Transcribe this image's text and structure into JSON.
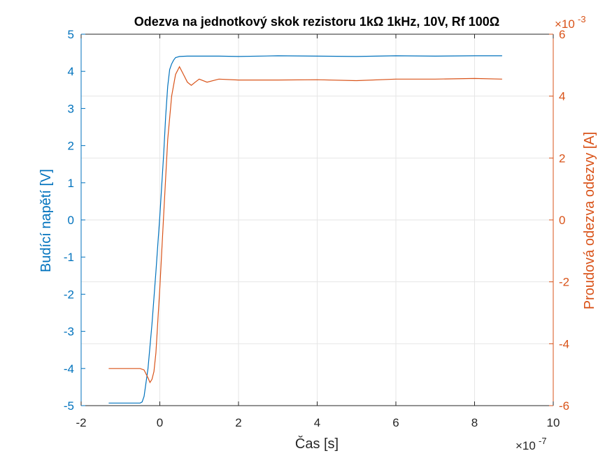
{
  "chart_data": {
    "type": "line",
    "title": "Odezva na jednotkový skok rezistoru 1kΩ 1kHz, 10V, Rf 100Ω",
    "xlabel": "Čas [s]",
    "ylabel_left": "Budící napětí [V]",
    "ylabel_right": "Proudová odezva odezvy [A]",
    "x_exponent_label": "×10",
    "x_exponent_power": "-7",
    "y_right_exponent_label": "×10",
    "y_right_exponent_power": "-3",
    "xlim": [
      -2,
      10
    ],
    "ylim_left": [
      -5,
      5
    ],
    "ylim_right": [
      -6,
      6
    ],
    "x_ticks": [
      -2,
      0,
      2,
      4,
      6,
      8,
      10
    ],
    "x_tick_labels": [
      "-2",
      "0",
      "2",
      "4",
      "6",
      "8",
      "10"
    ],
    "y_left_ticks": [
      -5,
      -4,
      -3,
      -2,
      -1,
      0,
      1,
      2,
      3,
      4,
      5
    ],
    "y_left_tick_labels": [
      "-5",
      "-4",
      "-3",
      "-2",
      "-1",
      "0",
      "1",
      "2",
      "3",
      "4",
      "5"
    ],
    "y_right_ticks": [
      -6,
      -4,
      -2,
      0,
      2,
      4,
      6
    ],
    "y_right_tick_labels": [
      "-6",
      "-4",
      "-2",
      "0",
      "2",
      "4",
      "6"
    ],
    "grid": true,
    "colors": {
      "left": "#0072BD",
      "right": "#D95319",
      "grid": "#e6e6e6",
      "axis": "#262626"
    },
    "series": [
      {
        "axis": "left",
        "x": [
          -1.3,
          -1.0,
          -0.7,
          -0.5,
          -0.45,
          -0.4,
          -0.3,
          -0.2,
          -0.1,
          0.0,
          0.1,
          0.15,
          0.2,
          0.25,
          0.3,
          0.35,
          0.4,
          0.5,
          0.7,
          1.0,
          1.5,
          2.0,
          3.0,
          4.0,
          5.0,
          6.0,
          7.0,
          8.0,
          8.7
        ],
        "values": [
          -4.93,
          -4.93,
          -4.93,
          -4.93,
          -4.9,
          -4.75,
          -4.0,
          -2.8,
          -1.4,
          0.1,
          1.8,
          2.8,
          3.6,
          4.05,
          4.2,
          4.3,
          4.37,
          4.4,
          4.41,
          4.41,
          4.41,
          4.4,
          4.42,
          4.41,
          4.4,
          4.42,
          4.41,
          4.42,
          4.42
        ]
      },
      {
        "axis": "right",
        "x": [
          -1.3,
          -1.0,
          -0.7,
          -0.5,
          -0.4,
          -0.3,
          -0.25,
          -0.2,
          -0.15,
          -0.1,
          0.0,
          0.1,
          0.2,
          0.3,
          0.4,
          0.5,
          0.6,
          0.7,
          0.8,
          0.9,
          1.0,
          1.2,
          1.5,
          2.0,
          3.0,
          4.0,
          5.0,
          6.0,
          7.0,
          8.0,
          8.7
        ],
        "values": [
          -4.8,
          -4.8,
          -4.8,
          -4.8,
          -4.85,
          -5.1,
          -5.25,
          -5.15,
          -4.9,
          -4.3,
          -2.2,
          0.2,
          2.6,
          4.0,
          4.7,
          4.95,
          4.7,
          4.45,
          4.35,
          4.45,
          4.55,
          4.45,
          4.55,
          4.52,
          4.52,
          4.53,
          4.5,
          4.55,
          4.55,
          4.57,
          4.55
        ]
      }
    ]
  }
}
